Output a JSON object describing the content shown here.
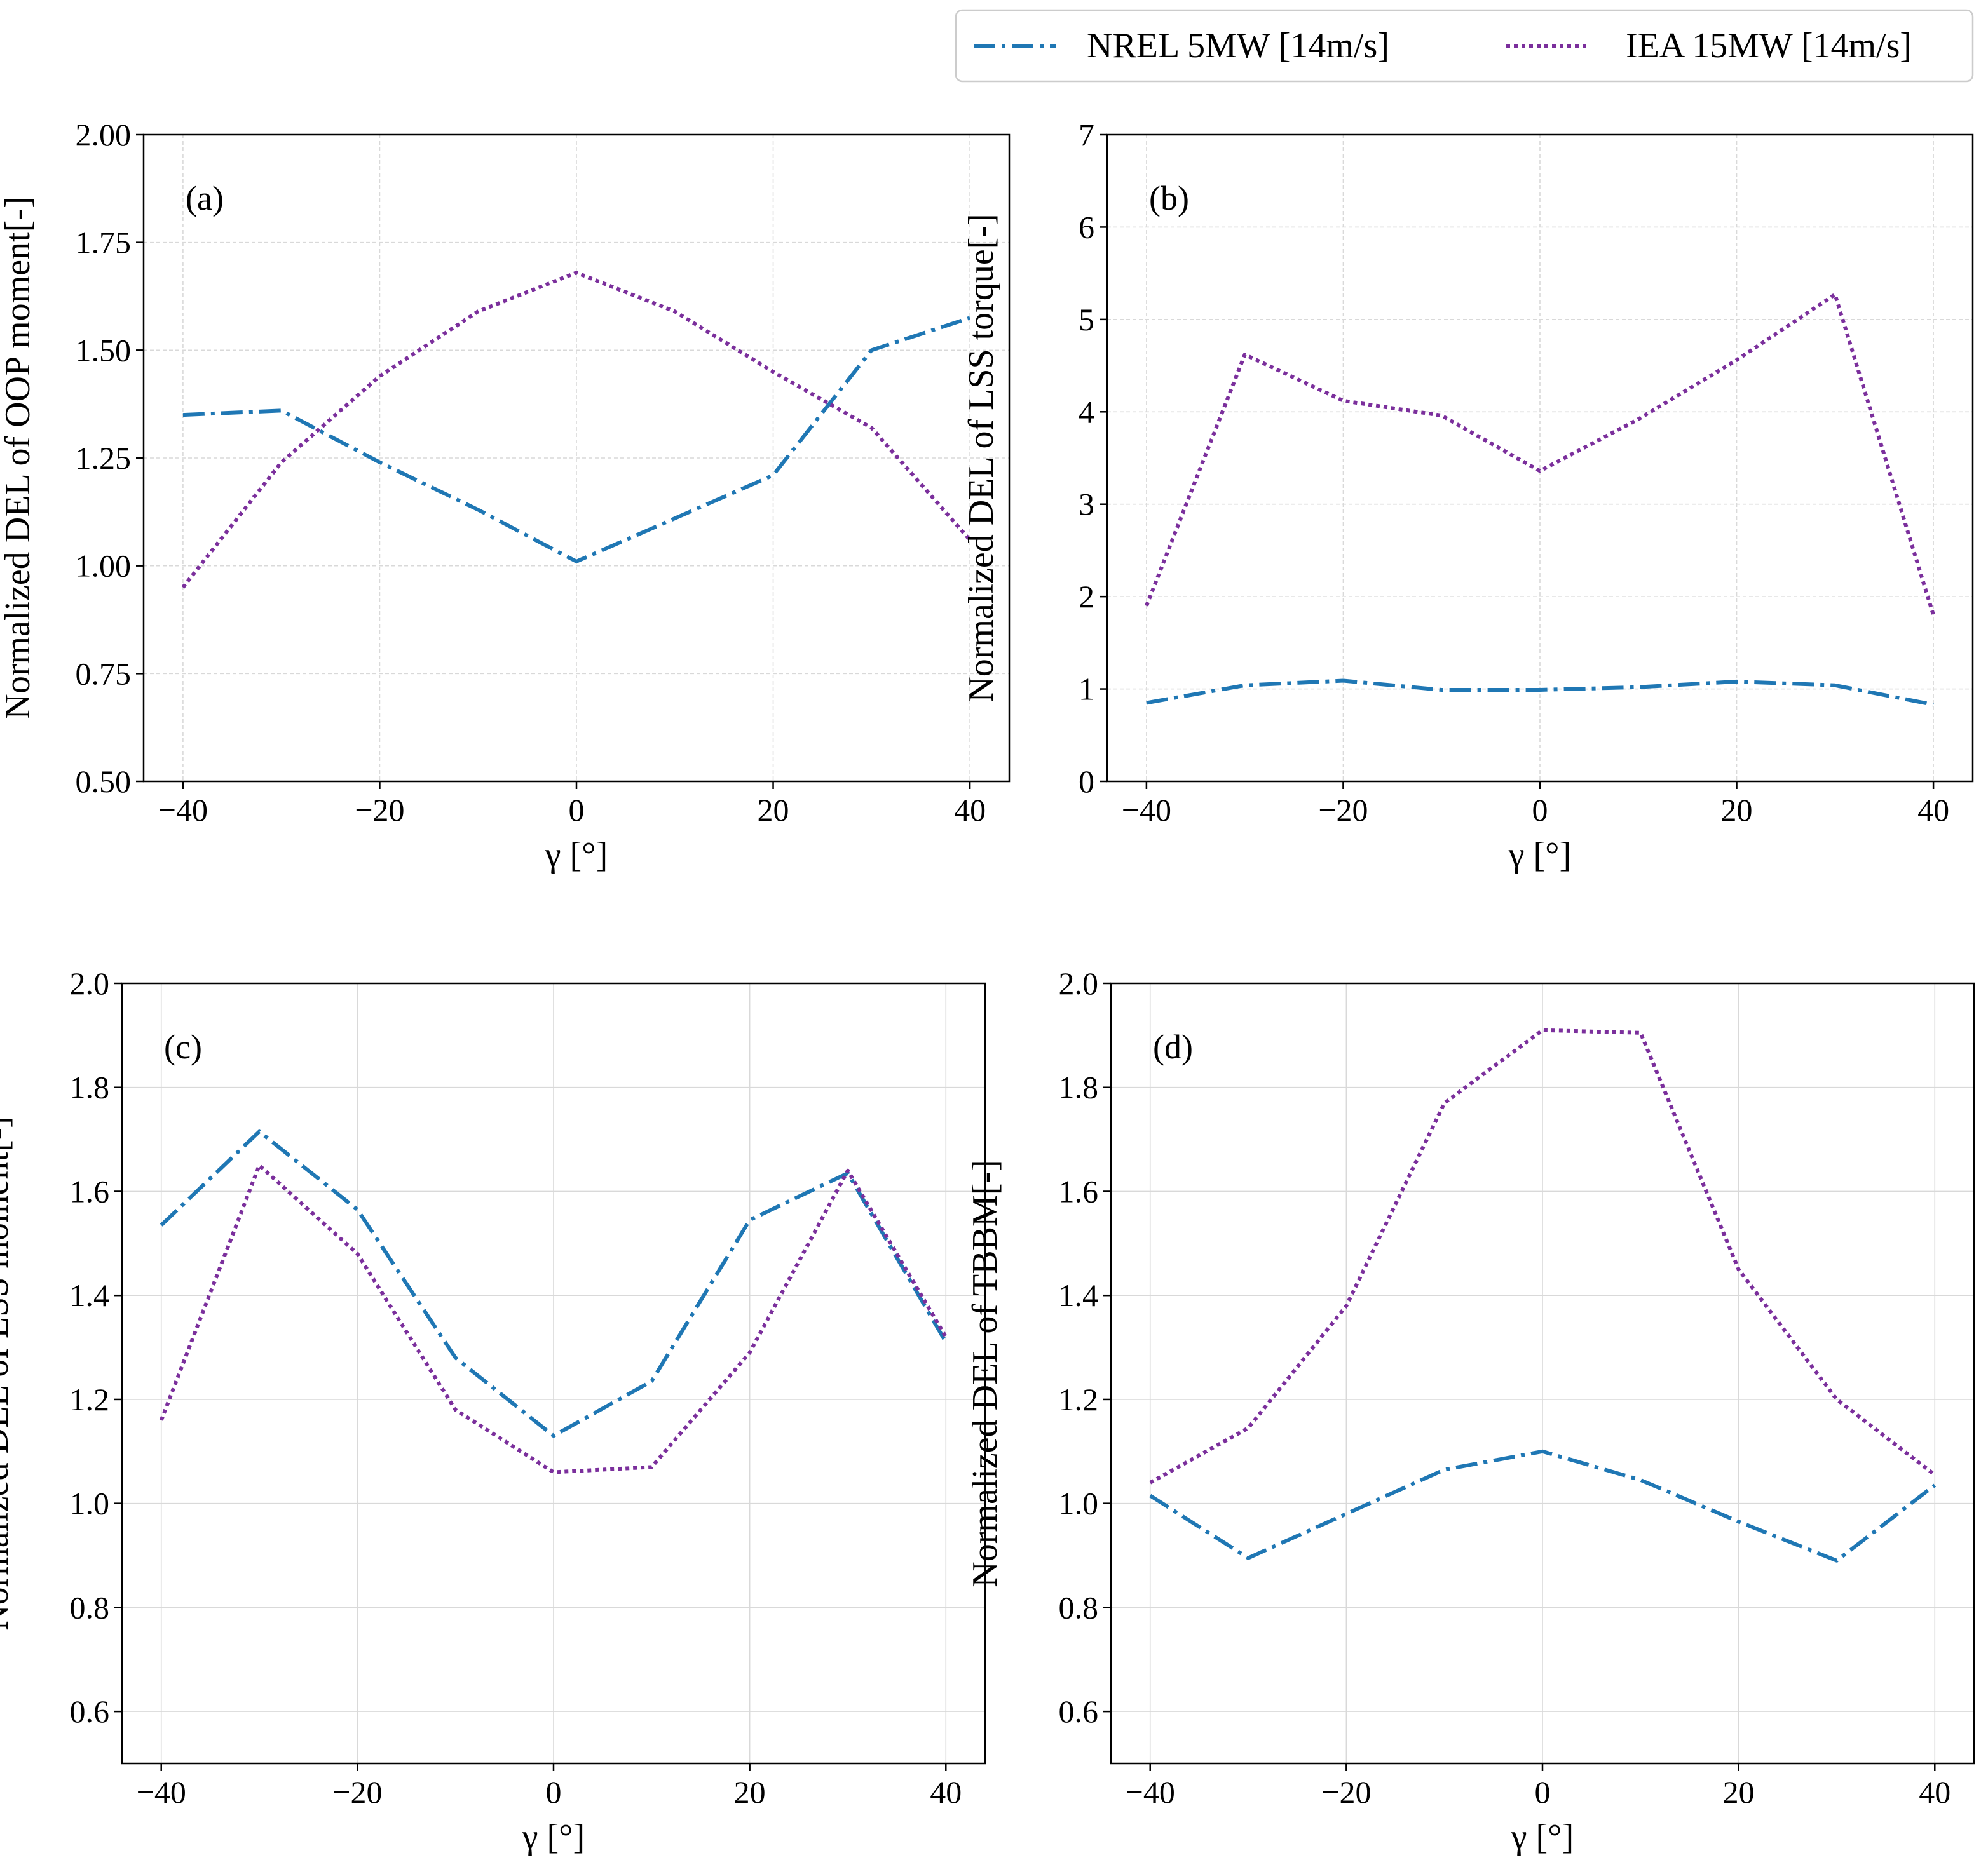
{
  "legend": {
    "entries": [
      {
        "name": "NREL 5MW [14m/s]",
        "color": "#1f77b4",
        "style": "dashdot"
      },
      {
        "name": "IEA 15MW [14m/s]",
        "color": "#7b2f9c",
        "style": "dotted"
      }
    ],
    "location": "top-right"
  },
  "chart_data": [
    {
      "type": "line",
      "panel_label": "(a)",
      "xlabel": "γ [°]",
      "ylabel": "Normalized DEL of OOP moment[-]",
      "x": [
        -40,
        -30,
        -20,
        -10,
        0,
        10,
        20,
        30,
        40
      ],
      "xlim": [
        -44,
        44
      ],
      "ylim": [
        0.5,
        2.0
      ],
      "xticks": [
        -40,
        -20,
        0,
        20,
        40
      ],
      "xtick_labels": [
        "−40",
        "−20",
        "0",
        "20",
        "40"
      ],
      "yticks": [
        0.5,
        0.75,
        1.0,
        1.25,
        1.5,
        1.75,
        2.0
      ],
      "ytick_labels": [
        "0.50",
        "0.75",
        "1.00",
        "1.25",
        "1.50",
        "1.75",
        "2.00"
      ],
      "grid": "dashed",
      "series": [
        {
          "name": "NREL 5MW [14m/s]",
          "values": [
            1.35,
            1.36,
            1.24,
            1.13,
            1.01,
            1.11,
            1.21,
            1.5,
            1.575
          ]
        },
        {
          "name": "IEA 15MW [14m/s]",
          "values": [
            0.95,
            1.24,
            1.44,
            1.59,
            1.68,
            1.59,
            1.45,
            1.32,
            1.06
          ]
        }
      ]
    },
    {
      "type": "line",
      "panel_label": "(b)",
      "xlabel": "γ [°]",
      "ylabel": "Normalized DEL of LSS torque[-]",
      "x": [
        -40,
        -30,
        -20,
        -10,
        0,
        10,
        20,
        30,
        40
      ],
      "xlim": [
        -44,
        44
      ],
      "ylim": [
        0,
        7
      ],
      "xticks": [
        -40,
        -20,
        0,
        20,
        40
      ],
      "xtick_labels": [
        "−40",
        "−20",
        "0",
        "20",
        "40"
      ],
      "yticks": [
        0,
        1,
        2,
        3,
        4,
        5,
        6,
        7
      ],
      "ytick_labels": [
        "0",
        "1",
        "2",
        "3",
        "4",
        "5",
        "6",
        "7"
      ],
      "grid": "dashed",
      "series": [
        {
          "name": "NREL 5MW [14m/s]",
          "values": [
            0.85,
            1.04,
            1.09,
            0.99,
            0.99,
            1.02,
            1.08,
            1.04,
            0.83
          ]
        },
        {
          "name": "IEA 15MW [14m/s]",
          "values": [
            1.9,
            4.62,
            4.12,
            3.96,
            3.36,
            3.92,
            4.56,
            5.27,
            1.8
          ]
        }
      ]
    },
    {
      "type": "line",
      "panel_label": "(c)",
      "xlabel": "γ [°]",
      "ylabel": "Normalized DEL of LSS moment[-]",
      "x": [
        -40,
        -30,
        -20,
        -10,
        0,
        10,
        20,
        30,
        40
      ],
      "xlim": [
        -44,
        44
      ],
      "ylim": [
        0.5,
        2.0
      ],
      "xticks": [
        -40,
        -20,
        0,
        20,
        40
      ],
      "xtick_labels": [
        "−40",
        "−20",
        "0",
        "20",
        "40"
      ],
      "yticks": [
        0.6,
        0.8,
        1.0,
        1.2,
        1.4,
        1.6,
        1.8,
        2.0
      ],
      "ytick_labels": [
        "0.6",
        "0.8",
        "1.0",
        "1.2",
        "1.4",
        "1.6",
        "1.8",
        "2.0"
      ],
      "grid": "solid",
      "series": [
        {
          "name": "NREL 5MW [14m/s]",
          "values": [
            1.535,
            1.715,
            1.565,
            1.28,
            1.13,
            1.235,
            1.545,
            1.635,
            1.31
          ]
        },
        {
          "name": "IEA 15MW [14m/s]",
          "values": [
            1.16,
            1.65,
            1.48,
            1.18,
            1.06,
            1.07,
            1.29,
            1.64,
            1.32
          ]
        }
      ]
    },
    {
      "type": "line",
      "panel_label": "(d)",
      "xlabel": "γ [°]",
      "ylabel": "Normalized DEL of TBBM[-]",
      "x": [
        -40,
        -30,
        -20,
        -10,
        0,
        10,
        20,
        30,
        40
      ],
      "xlim": [
        -44,
        44
      ],
      "ylim": [
        0.5,
        2.0
      ],
      "xticks": [
        -40,
        -20,
        0,
        20,
        40
      ],
      "xtick_labels": [
        "−40",
        "−20",
        "0",
        "20",
        "40"
      ],
      "yticks": [
        0.6,
        0.8,
        1.0,
        1.2,
        1.4,
        1.6,
        1.8,
        2.0
      ],
      "ytick_labels": [
        "0.6",
        "0.8",
        "1.0",
        "1.2",
        "1.4",
        "1.6",
        "1.8",
        "2.0"
      ],
      "grid": "solid",
      "series": [
        {
          "name": "NREL 5MW [14m/s]",
          "values": [
            1.015,
            0.895,
            0.98,
            1.065,
            1.1,
            1.045,
            0.965,
            0.89,
            1.035
          ]
        },
        {
          "name": "IEA 15MW [14m/s]",
          "values": [
            1.04,
            1.145,
            1.38,
            1.77,
            1.91,
            1.905,
            1.45,
            1.2,
            1.055
          ]
        }
      ]
    }
  ]
}
